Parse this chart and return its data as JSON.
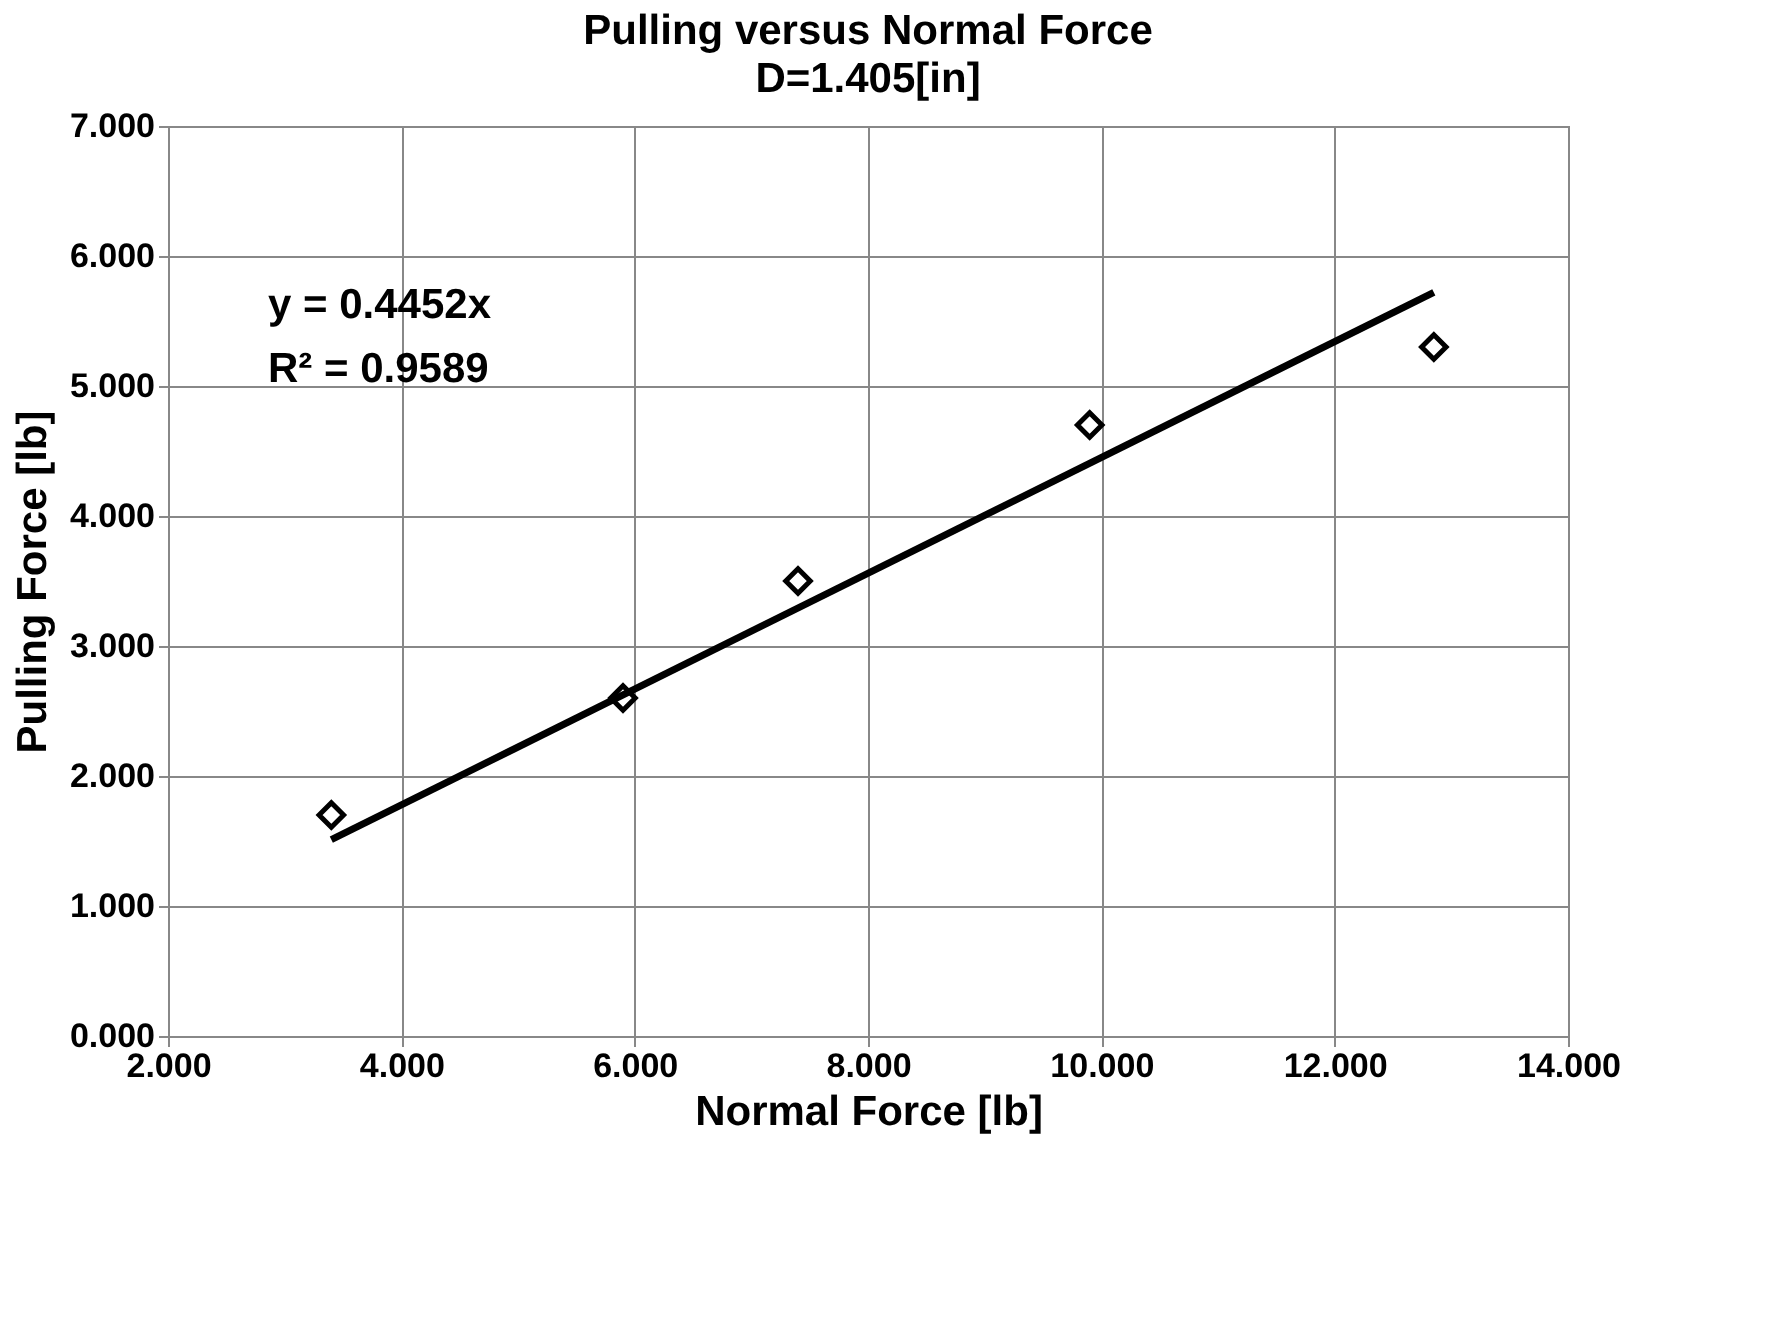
{
  "chart_data": {
    "type": "scatter",
    "title": "Pulling versus Normal Force",
    "subtitle": "D=1.405[in]",
    "xlabel": "Normal Force [lb]",
    "ylabel": "Pulling Force [lb]",
    "annotations": [
      "y = 0.4452x",
      "R² = 0.9589"
    ],
    "xlim": [
      2,
      14
    ],
    "xticks": [
      {
        "value": 2,
        "label": "2.000"
      },
      {
        "value": 4,
        "label": "4.000"
      },
      {
        "value": 6,
        "label": "6.000"
      },
      {
        "value": 8,
        "label": "8.000"
      },
      {
        "value": 10,
        "label": "10.000"
      },
      {
        "value": 12,
        "label": "12.000"
      },
      {
        "value": 14,
        "label": "14.000"
      }
    ],
    "ylim": [
      0,
      7
    ],
    "yticks": [
      {
        "value": 0,
        "label": "0.000"
      },
      {
        "value": 1,
        "label": "1.000"
      },
      {
        "value": 2,
        "label": "2.000"
      },
      {
        "value": 3,
        "label": "3.000"
      },
      {
        "value": 4,
        "label": "4.000"
      },
      {
        "value": 5,
        "label": "5.000"
      },
      {
        "value": 6,
        "label": "6.000"
      },
      {
        "value": 7,
        "label": "7.000"
      }
    ],
    "grid": true,
    "marker": "diamond",
    "series": [
      {
        "color": "#000000",
        "x": [
          3.4,
          5.9,
          7.4,
          9.9,
          12.85
        ],
        "values": [
          1.7,
          2.6,
          3.5,
          4.7,
          5.3
        ]
      },
      {
        "type": "line",
        "color": "#000000",
        "line_style": "solid",
        "marker": "none",
        "x": [
          3.4,
          12.85
        ],
        "values": [
          1.51,
          5.72
        ]
      }
    ]
  }
}
